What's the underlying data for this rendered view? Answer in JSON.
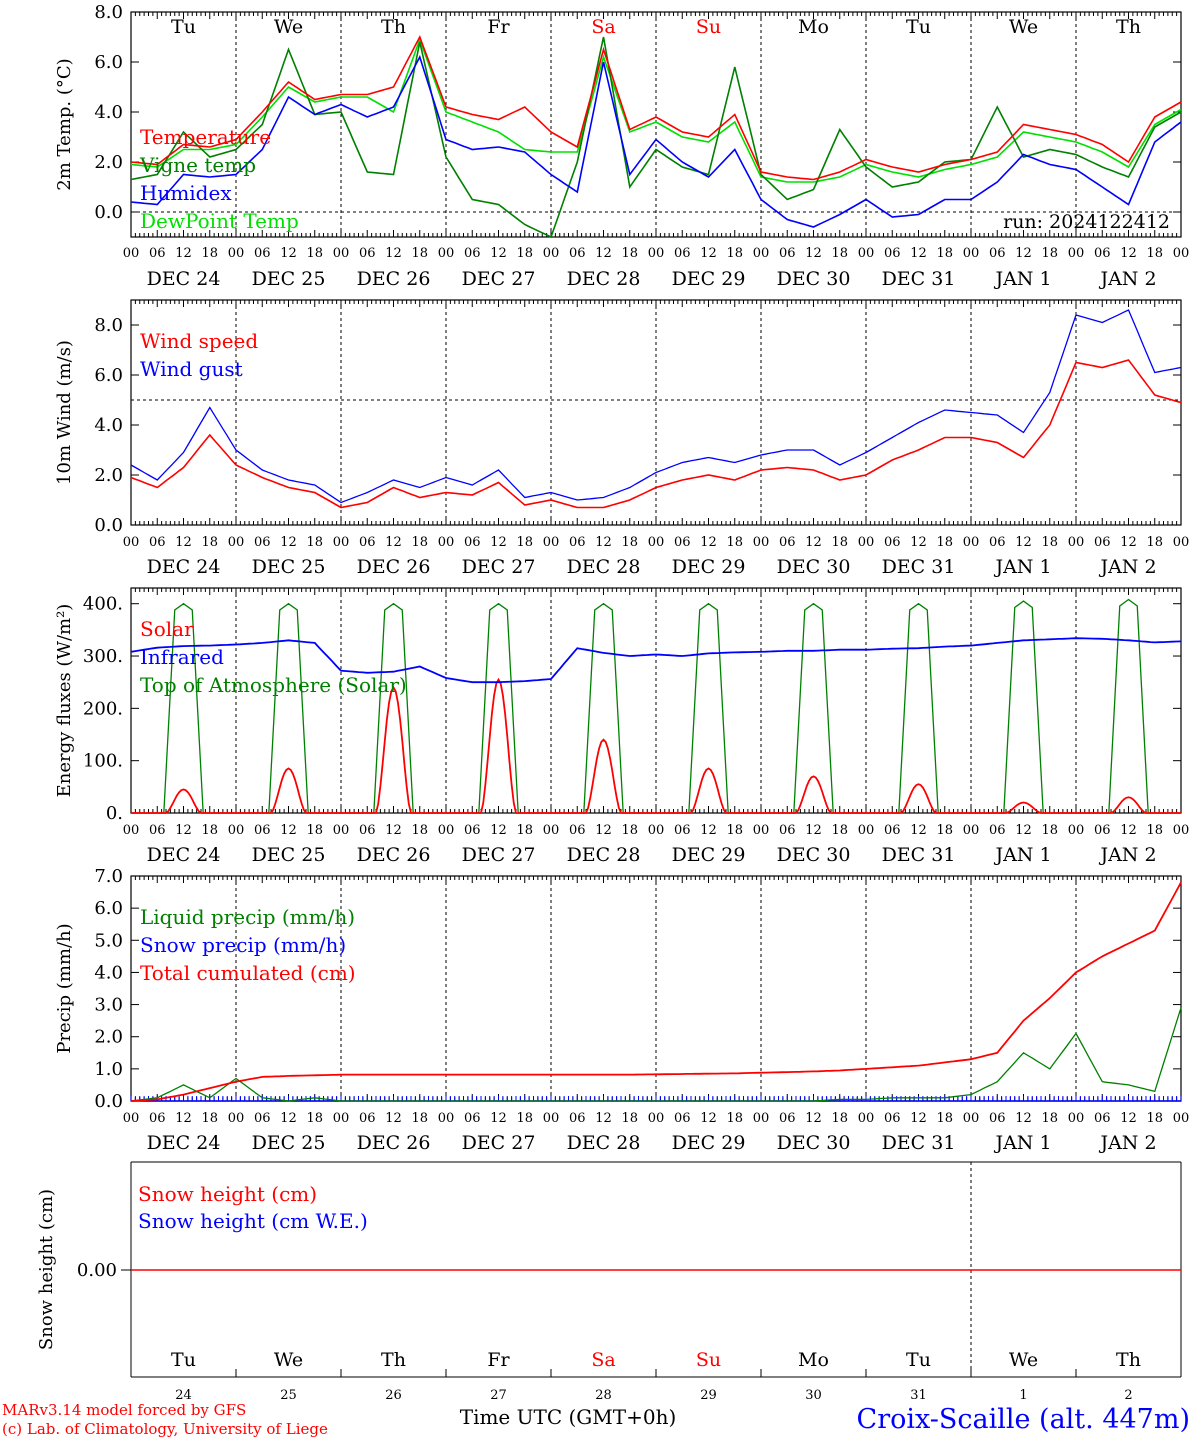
{
  "run_label": "run: 2024122412",
  "footer": {
    "credit_line1": "MARv3.14 model forced by GFS",
    "credit_line2": "(c) Lab. of Climatology, University of Liege",
    "time_label": "Time UTC (GMT+0h)",
    "station": "Croix-Scaille (alt. 447m)"
  },
  "days": [
    {
      "abbr": "Tu",
      "date": "DEC 24",
      "num": "24",
      "weekend": false
    },
    {
      "abbr": "We",
      "date": "DEC 25",
      "num": "25",
      "weekend": false
    },
    {
      "abbr": "Th",
      "date": "DEC 26",
      "num": "26",
      "weekend": false
    },
    {
      "abbr": "Fr",
      "date": "DEC 27",
      "num": "27",
      "weekend": false
    },
    {
      "abbr": "Sa",
      "date": "DEC 28",
      "num": "28",
      "weekend": true
    },
    {
      "abbr": "Su",
      "date": "DEC 29",
      "num": "29",
      "weekend": true
    },
    {
      "abbr": "Mo",
      "date": "DEC 30",
      "num": "30",
      "weekend": false
    },
    {
      "abbr": "Tu",
      "date": "DEC 31",
      "num": "31",
      "weekend": false
    },
    {
      "abbr": "We",
      "date": "JAN  1",
      "num": "1",
      "weekend": false
    },
    {
      "abbr": "Th",
      "date": "JAN  2",
      "num": "2",
      "weekend": false
    }
  ],
  "hour_labels": [
    "00",
    "06",
    "12",
    "18"
  ],
  "hour_label_end": "00",
  "colors": {
    "red": "#ff0000",
    "green": "#008000",
    "blue": "#0000ff",
    "lime": "#00e000",
    "weekend": "#ff0000"
  },
  "chart_data": [
    {
      "type": "line",
      "ylabel": "2m Temp. (°C)",
      "ylim": [
        -1,
        8
      ],
      "yticks": [
        "0.0",
        "2.0",
        "4.0",
        "6.0",
        "8.0"
      ],
      "ytick_values": [
        0,
        2,
        4,
        6,
        8
      ],
      "reference_line": 0,
      "x_unit": "hours since DEC 24 00 UTC",
      "legend": [
        "Temperature",
        "Vigne temp",
        "Humidex",
        "DewPoint Temp"
      ],
      "series": [
        {
          "name": "Temperature",
          "color": "#ff0000",
          "x": [
            0,
            6,
            12,
            18,
            24,
            30,
            36,
            42,
            48,
            54,
            60,
            66,
            72,
            78,
            84,
            90,
            96,
            102,
            108,
            114,
            120,
            126,
            132,
            138,
            144,
            150,
            156,
            162,
            168,
            174,
            180,
            186,
            192,
            198,
            204,
            210,
            216,
            222,
            228,
            234,
            240
          ],
          "y": [
            2.0,
            1.9,
            2.7,
            2.6,
            2.9,
            4.0,
            5.2,
            4.5,
            4.7,
            4.7,
            5.0,
            7.0,
            4.2,
            3.9,
            3.7,
            4.2,
            3.2,
            2.6,
            6.5,
            3.3,
            3.8,
            3.2,
            3.0,
            3.9,
            1.6,
            1.4,
            1.3,
            1.6,
            2.1,
            1.8,
            1.6,
            1.9,
            2.1,
            2.4,
            3.5,
            3.3,
            3.1,
            2.7,
            2.0,
            3.8,
            4.4
          ]
        },
        {
          "name": "Vigne temp",
          "color": "#008000",
          "x": [
            0,
            6,
            12,
            18,
            24,
            30,
            36,
            42,
            48,
            54,
            60,
            66,
            72,
            78,
            84,
            90,
            96,
            102,
            108,
            114,
            120,
            126,
            132,
            138,
            144,
            150,
            156,
            162,
            168,
            174,
            180,
            186,
            192,
            198,
            204,
            210,
            216,
            222,
            228,
            234,
            240
          ],
          "y": [
            1.3,
            1.5,
            3.2,
            2.2,
            2.5,
            3.5,
            6.5,
            3.9,
            4.0,
            1.6,
            1.5,
            6.8,
            2.2,
            0.5,
            0.3,
            -0.5,
            -1.0,
            2.0,
            7.0,
            1.0,
            2.5,
            1.8,
            1.5,
            5.8,
            1.5,
            0.5,
            0.9,
            3.3,
            1.8,
            1.0,
            1.2,
            2.0,
            2.1,
            4.2,
            2.2,
            2.5,
            2.3,
            1.8,
            1.4,
            3.4,
            4.0
          ]
        },
        {
          "name": "Humidex",
          "color": "#0000ff",
          "x": [
            0,
            6,
            12,
            18,
            24,
            30,
            36,
            42,
            48,
            54,
            60,
            66,
            72,
            78,
            84,
            90,
            96,
            102,
            108,
            114,
            120,
            126,
            132,
            138,
            144,
            150,
            156,
            162,
            168,
            174,
            180,
            186,
            192,
            198,
            204,
            210,
            216,
            222,
            228,
            234,
            240
          ],
          "y": [
            0.4,
            0.3,
            1.5,
            1.4,
            1.5,
            2.5,
            4.6,
            3.9,
            4.3,
            3.8,
            4.2,
            6.2,
            2.9,
            2.5,
            2.6,
            2.4,
            1.5,
            0.8,
            6.0,
            1.5,
            2.9,
            2.0,
            1.4,
            2.5,
            0.5,
            -0.3,
            -0.6,
            -0.1,
            0.5,
            -0.2,
            -0.1,
            0.5,
            0.5,
            1.2,
            2.3,
            1.9,
            1.7,
            1.0,
            0.3,
            2.8,
            3.6
          ]
        },
        {
          "name": "DewPoint Temp",
          "color": "#00e000",
          "x": [
            0,
            6,
            12,
            18,
            24,
            30,
            36,
            42,
            48,
            54,
            60,
            66,
            72,
            78,
            84,
            90,
            96,
            102,
            108,
            114,
            120,
            126,
            132,
            138,
            144,
            150,
            156,
            162,
            168,
            174,
            180,
            186,
            192,
            198,
            204,
            210,
            216,
            222,
            228,
            234,
            240
          ],
          "y": [
            1.9,
            1.8,
            2.5,
            2.5,
            2.7,
            3.8,
            5.0,
            4.4,
            4.6,
            4.6,
            4.0,
            6.9,
            4.0,
            3.6,
            3.2,
            2.5,
            2.4,
            2.4,
            6.2,
            3.2,
            3.6,
            3.0,
            2.8,
            3.6,
            1.4,
            1.2,
            1.2,
            1.4,
            1.9,
            1.6,
            1.4,
            1.7,
            1.9,
            2.2,
            3.2,
            3.0,
            2.8,
            2.4,
            1.8,
            3.5,
            4.1
          ]
        }
      ]
    },
    {
      "type": "line",
      "ylabel": "10m Wind (m/s)",
      "ylim": [
        0,
        9
      ],
      "yticks": [
        "0.0",
        "2.0",
        "4.0",
        "6.0",
        "8.0"
      ],
      "ytick_values": [
        0,
        2,
        4,
        6,
        8
      ],
      "reference_line": 5,
      "x_unit": "hours since DEC 24 00 UTC",
      "legend": [
        "Wind speed",
        "Wind gust"
      ],
      "series": [
        {
          "name": "Wind speed",
          "color": "#ff0000",
          "x": [
            0,
            6,
            12,
            18,
            24,
            30,
            36,
            42,
            48,
            54,
            60,
            66,
            72,
            78,
            84,
            90,
            96,
            102,
            108,
            114,
            120,
            126,
            132,
            138,
            144,
            150,
            156,
            162,
            168,
            174,
            180,
            186,
            192,
            198,
            204,
            210,
            216,
            222,
            228,
            234,
            240
          ],
          "y": [
            1.9,
            1.5,
            2.3,
            3.6,
            2.4,
            1.9,
            1.5,
            1.3,
            0.7,
            0.9,
            1.5,
            1.1,
            1.3,
            1.2,
            1.7,
            0.8,
            1.0,
            0.7,
            0.7,
            1.0,
            1.5,
            1.8,
            2.0,
            1.8,
            2.2,
            2.3,
            2.2,
            1.8,
            2.0,
            2.6,
            3.0,
            3.5,
            3.5,
            3.3,
            2.7,
            4.0,
            6.5,
            6.3,
            6.6,
            5.2,
            4.9
          ]
        },
        {
          "name": "Wind gust",
          "color": "#0000ff",
          "x": [
            0,
            6,
            12,
            18,
            24,
            30,
            36,
            42,
            48,
            54,
            60,
            66,
            72,
            78,
            84,
            90,
            96,
            102,
            108,
            114,
            120,
            126,
            132,
            138,
            144,
            150,
            156,
            162,
            168,
            174,
            180,
            186,
            192,
            198,
            204,
            210,
            216,
            222,
            228,
            234,
            240
          ],
          "y": [
            2.4,
            1.8,
            2.9,
            4.7,
            3.0,
            2.2,
            1.8,
            1.6,
            0.9,
            1.3,
            1.8,
            1.5,
            1.9,
            1.6,
            2.2,
            1.1,
            1.3,
            1.0,
            1.1,
            1.5,
            2.1,
            2.5,
            2.7,
            2.5,
            2.8,
            3.0,
            3.0,
            2.4,
            2.9,
            3.5,
            4.1,
            4.6,
            4.5,
            4.4,
            3.7,
            5.3,
            8.4,
            8.1,
            8.6,
            6.1,
            6.3
          ]
        }
      ]
    },
    {
      "type": "line",
      "ylabel": "Energy fluxes (W/m²)",
      "ylim": [
        0,
        430
      ],
      "yticks": [
        "0.",
        "100.",
        "200.",
        "300.",
        "400."
      ],
      "ytick_values": [
        0,
        100,
        200,
        300,
        400
      ],
      "x_unit": "hours since DEC 24 00 UTC",
      "legend": [
        "Solar",
        "Infrared",
        "Top of Atmosphere (Solar)"
      ],
      "daily_solar_peaks": [
        45,
        85,
        240,
        255,
        140,
        85,
        70,
        55,
        20,
        30
      ],
      "daily_toa_peaks": [
        400,
        400,
        400,
        400,
        400,
        400,
        400,
        400,
        405,
        408
      ],
      "series": [
        {
          "name": "Infrared",
          "color": "#0000ff",
          "x": [
            0,
            6,
            12,
            18,
            24,
            30,
            36,
            42,
            48,
            54,
            60,
            66,
            72,
            78,
            84,
            90,
            96,
            102,
            108,
            114,
            120,
            126,
            132,
            138,
            144,
            150,
            156,
            162,
            168,
            174,
            180,
            186,
            192,
            198,
            204,
            210,
            216,
            222,
            228,
            234,
            240
          ],
          "y": [
            308,
            316,
            319,
            320,
            322,
            325,
            330,
            325,
            272,
            268,
            270,
            280,
            258,
            250,
            250,
            252,
            256,
            315,
            306,
            300,
            303,
            300,
            305,
            307,
            308,
            310,
            310,
            312,
            312,
            314,
            315,
            318,
            320,
            325,
            330,
            332,
            334,
            333,
            330,
            326,
            328
          ]
        }
      ]
    },
    {
      "type": "line",
      "ylabel": "Precip (mm/h)",
      "ylim": [
        0,
        7
      ],
      "yticks": [
        "0.0",
        "1.0",
        "2.0",
        "3.0",
        "4.0",
        "5.0",
        "6.0",
        "7.0"
      ],
      "ytick_values": [
        0,
        1,
        2,
        3,
        4,
        5,
        6,
        7
      ],
      "x_unit": "hours since DEC 24 00 UTC",
      "legend": [
        "Liquid precip (mm/h)",
        "Snow precip (mm/h)",
        "Total cumulated (cm)"
      ],
      "series": [
        {
          "name": "Liquid precip (mm/h)",
          "color": "#008000",
          "x": [
            0,
            6,
            12,
            18,
            24,
            30,
            36,
            42,
            48,
            54,
            60,
            66,
            72,
            78,
            84,
            90,
            96,
            102,
            108,
            114,
            120,
            126,
            132,
            138,
            144,
            150,
            156,
            162,
            168,
            174,
            180,
            186,
            192,
            198,
            204,
            210,
            216,
            222,
            228,
            234,
            240
          ],
          "y": [
            0,
            0.1,
            0.5,
            0.1,
            0.7,
            0.1,
            0,
            0.1,
            0,
            0,
            0,
            0,
            0,
            0,
            0,
            0,
            0,
            0,
            0,
            0,
            0,
            0,
            0,
            0,
            0,
            0,
            0,
            0.05,
            0.05,
            0.1,
            0.1,
            0.1,
            0.2,
            0.6,
            1.5,
            1.0,
            2.1,
            0.6,
            0.5,
            0.3,
            2.9
          ]
        },
        {
          "name": "Snow precip (mm/h)",
          "color": "#0000ff",
          "x": [
            0,
            240
          ],
          "y": [
            0,
            0
          ]
        },
        {
          "name": "Total cumulated (cm)",
          "color": "#ff0000",
          "x": [
            0,
            6,
            12,
            18,
            24,
            30,
            36,
            42,
            48,
            54,
            60,
            66,
            72,
            78,
            84,
            90,
            96,
            102,
            108,
            114,
            120,
            126,
            132,
            138,
            144,
            150,
            156,
            162,
            168,
            174,
            180,
            186,
            192,
            198,
            204,
            210,
            216,
            222,
            228,
            234,
            240
          ],
          "y": [
            0,
            0.05,
            0.2,
            0.4,
            0.6,
            0.75,
            0.78,
            0.8,
            0.82,
            0.82,
            0.82,
            0.82,
            0.82,
            0.82,
            0.82,
            0.82,
            0.82,
            0.82,
            0.82,
            0.82,
            0.83,
            0.84,
            0.85,
            0.86,
            0.88,
            0.9,
            0.92,
            0.95,
            1.0,
            1.05,
            1.1,
            1.2,
            1.3,
            1.5,
            2.5,
            3.2,
            4.0,
            4.5,
            4.9,
            5.3,
            6.8
          ]
        }
      ]
    },
    {
      "type": "line",
      "ylabel": "Snow height (cm)",
      "yticks": [
        "0.00"
      ],
      "ytick_values": [
        0
      ],
      "x_unit": "hours since DEC 24 00 UTC",
      "legend": [
        "Snow height (cm)",
        "Snow height (cm W.E.)"
      ],
      "series": [
        {
          "name": "Snow height (cm)",
          "color": "#ff0000",
          "x": [
            0,
            240
          ],
          "y": [
            0,
            0
          ]
        },
        {
          "name": "Snow height (cm W.E.)",
          "color": "#0000ff",
          "x": [
            0,
            240
          ],
          "y": [
            0,
            0
          ]
        }
      ]
    }
  ]
}
